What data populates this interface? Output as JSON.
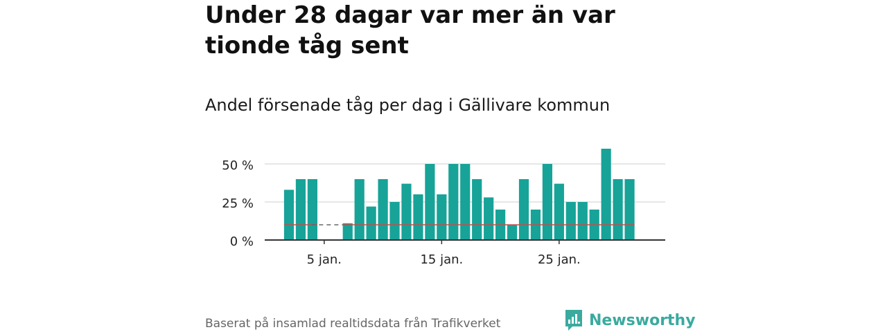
{
  "title": "Under 28 dagar var mer än var tionde tåg sent",
  "subtitle": "Andel försenade tåg per dag i Gällivare kommun",
  "source": "Baserat på insamlad realtidsdata från Trafikverket",
  "brand": "Newsworthy",
  "colors": {
    "bar": "#17a398",
    "grid": "#dddddd",
    "axis": "#333333",
    "reference": "#c0504d",
    "reference_dashed": "#666666",
    "brand": "#3aaa9f"
  },
  "chart_data": {
    "type": "bar",
    "x_unit": "day of January",
    "x": [
      2,
      3,
      4,
      5,
      6,
      7,
      8,
      9,
      10,
      11,
      12,
      13,
      14,
      15,
      16,
      17,
      18,
      19,
      20,
      21,
      22,
      23,
      24,
      25,
      26,
      27,
      28,
      29,
      30,
      31,
      32
    ],
    "values": [
      33,
      40,
      40,
      null,
      null,
      11,
      40,
      22,
      40,
      25,
      37,
      30,
      50,
      30,
      50,
      50,
      40,
      28,
      20,
      10,
      40,
      20,
      50,
      37,
      25,
      25,
      20,
      60,
      40,
      40,
      null
    ],
    "reference_value": 10,
    "ylim": [
      0,
      60
    ],
    "yticks": [
      0,
      25,
      50
    ],
    "ytick_labels": [
      "0 %",
      "25 %",
      "50 %"
    ],
    "xticks": [
      5,
      15,
      25
    ],
    "xtick_labels": [
      "5 jan.",
      "15 jan.",
      "25 jan."
    ],
    "grid": true
  }
}
